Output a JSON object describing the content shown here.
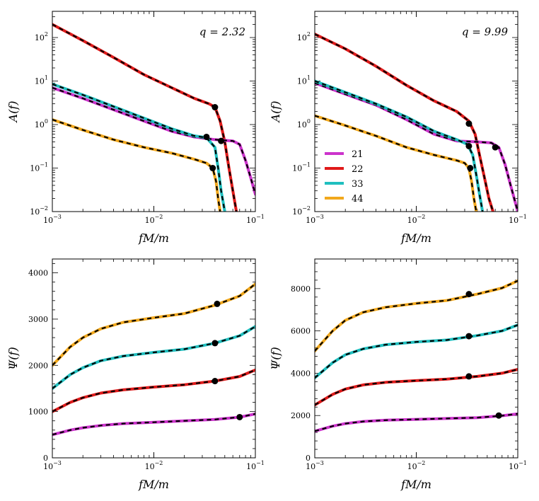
{
  "colors": {
    "21": "#cc33cc",
    "22": "#e01a1a",
    "33": "#1fbfbf",
    "44": "#f2a81c",
    "fit": "#000000",
    "marker": "#000000"
  },
  "chart_data": [
    {
      "type": "line",
      "id": "amp-q2",
      "annotation": "q = 2.32",
      "xlabel": "fM/m",
      "ylabel": "A(f)",
      "xscale": "log",
      "yscale": "log",
      "xlim": [
        0.001,
        0.1
      ],
      "ylim": [
        0.01,
        400
      ],
      "xticklabels": [
        "10^-3",
        "10^-2",
        "10^-1"
      ],
      "yticklabels": [
        "10^-2",
        "10^-1",
        "10^0",
        "10^1",
        "10^2"
      ],
      "legend": false,
      "series": [
        {
          "name": "22",
          "color": "#e01a1a",
          "x": [
            0.001,
            0.002,
            0.004,
            0.008,
            0.015,
            0.025,
            0.035,
            0.04,
            0.045,
            0.05,
            0.055,
            0.06,
            0.065
          ],
          "y": [
            200,
            85,
            35,
            14,
            7,
            4,
            3,
            2.5,
            1.2,
            0.4,
            0.1,
            0.03,
            0.01
          ]
        },
        {
          "name": "21",
          "color": "#cc33cc",
          "x": [
            0.001,
            0.002,
            0.004,
            0.008,
            0.015,
            0.025,
            0.04,
            0.06,
            0.07,
            0.08,
            0.09,
            0.1
          ],
          "y": [
            7,
            4,
            2.2,
            1.2,
            0.7,
            0.52,
            0.45,
            0.42,
            0.35,
            0.15,
            0.06,
            0.025
          ]
        },
        {
          "name": "33",
          "color": "#1fbfbf",
          "x": [
            0.001,
            0.002,
            0.004,
            0.008,
            0.015,
            0.025,
            0.033,
            0.04,
            0.043,
            0.046,
            0.05
          ],
          "y": [
            8.5,
            4.8,
            2.6,
            1.4,
            0.8,
            0.55,
            0.5,
            0.3,
            0.1,
            0.03,
            0.01
          ]
        },
        {
          "name": "44",
          "color": "#f2a81c",
          "x": [
            0.001,
            0.002,
            0.004,
            0.008,
            0.015,
            0.025,
            0.033,
            0.038,
            0.041,
            0.043,
            0.045
          ],
          "y": [
            1.3,
            0.75,
            0.45,
            0.3,
            0.22,
            0.16,
            0.13,
            0.1,
            0.05,
            0.02,
            0.01
          ]
        }
      ],
      "markers": [
        {
          "x": 0.04,
          "y": 2.5
        },
        {
          "x": 0.033,
          "y": 0.52
        },
        {
          "x": 0.046,
          "y": 0.42
        },
        {
          "x": 0.038,
          "y": 0.1
        }
      ]
    },
    {
      "type": "line",
      "id": "amp-q9",
      "annotation": "q = 9.99",
      "xlabel": "fM/m",
      "ylabel": "A(f)",
      "xscale": "log",
      "yscale": "log",
      "xlim": [
        0.001,
        0.1
      ],
      "ylim": [
        0.01,
        400
      ],
      "xticklabels": [
        "10^-3",
        "10^-2",
        "10^-1"
      ],
      "yticklabels": [
        "10^-2",
        "10^-1",
        "10^0",
        "10^1",
        "10^2"
      ],
      "legend": true,
      "legend_loc": "center-left",
      "series": [
        {
          "name": "22",
          "color": "#e01a1a",
          "x": [
            0.001,
            0.002,
            0.004,
            0.008,
            0.015,
            0.025,
            0.033,
            0.038,
            0.042,
            0.047,
            0.052,
            0.057
          ],
          "y": [
            120,
            55,
            22,
            8,
            3.5,
            2,
            1.2,
            0.6,
            0.2,
            0.06,
            0.02,
            0.01
          ]
        },
        {
          "name": "21",
          "color": "#cc33cc",
          "x": [
            0.001,
            0.002,
            0.004,
            0.008,
            0.015,
            0.025,
            0.04,
            0.055,
            0.065,
            0.075,
            0.085,
            0.1
          ],
          "y": [
            9,
            5,
            2.8,
            1.3,
            0.6,
            0.42,
            0.4,
            0.38,
            0.3,
            0.12,
            0.04,
            0.01
          ]
        },
        {
          "name": "33",
          "color": "#1fbfbf",
          "x": [
            0.001,
            0.002,
            0.004,
            0.008,
            0.015,
            0.025,
            0.032,
            0.036,
            0.039,
            0.042,
            0.045
          ],
          "y": [
            10,
            5.5,
            3,
            1.5,
            0.7,
            0.45,
            0.35,
            0.2,
            0.07,
            0.025,
            0.01
          ]
        },
        {
          "name": "44",
          "color": "#f2a81c",
          "x": [
            0.001,
            0.002,
            0.004,
            0.008,
            0.015,
            0.025,
            0.03,
            0.033,
            0.035,
            0.037,
            0.039
          ],
          "y": [
            1.6,
            0.95,
            0.55,
            0.3,
            0.2,
            0.15,
            0.13,
            0.1,
            0.05,
            0.02,
            0.01
          ]
        }
      ],
      "markers": [
        {
          "x": 0.033,
          "y": 1.05
        },
        {
          "x": 0.033,
          "y": 0.32
        },
        {
          "x": 0.06,
          "y": 0.3
        },
        {
          "x": 0.034,
          "y": 0.1
        }
      ]
    },
    {
      "type": "line",
      "id": "phase-q2",
      "xlabel": "fM/m",
      "ylabel": "Ψ(f)",
      "xscale": "log",
      "yscale": "linear",
      "xlim": [
        0.001,
        0.1
      ],
      "ylim": [
        0,
        4300
      ],
      "yticks": [
        0,
        1000,
        2000,
        3000,
        4000
      ],
      "xticklabels": [
        "10^-3",
        "10^-2",
        "10^-1"
      ],
      "yticklabels": [
        "0",
        "1000",
        "2000",
        "3000",
        "4000"
      ],
      "legend": false,
      "series": [
        {
          "name": "21",
          "color": "#cc33cc",
          "x": [
            0.001,
            0.0015,
            0.002,
            0.003,
            0.005,
            0.01,
            0.02,
            0.04,
            0.07,
            0.1
          ],
          "y": [
            500,
            600,
            650,
            700,
            740,
            770,
            800,
            830,
            880,
            950
          ]
        },
        {
          "name": "22",
          "color": "#e01a1a",
          "x": [
            0.001,
            0.0015,
            0.002,
            0.003,
            0.005,
            0.01,
            0.02,
            0.04,
            0.07,
            0.1
          ],
          "y": [
            1000,
            1200,
            1300,
            1400,
            1470,
            1530,
            1580,
            1660,
            1760,
            1900
          ]
        },
        {
          "name": "33",
          "color": "#1fbfbf",
          "x": [
            0.001,
            0.0015,
            0.002,
            0.003,
            0.005,
            0.01,
            0.02,
            0.04,
            0.07,
            0.1
          ],
          "y": [
            1500,
            1800,
            1950,
            2100,
            2200,
            2280,
            2350,
            2480,
            2640,
            2840
          ]
        },
        {
          "name": "44",
          "color": "#f2a81c",
          "x": [
            0.001,
            0.0015,
            0.002,
            0.003,
            0.005,
            0.01,
            0.02,
            0.04,
            0.07,
            0.1
          ],
          "y": [
            2000,
            2400,
            2600,
            2790,
            2930,
            3030,
            3120,
            3300,
            3500,
            3760
          ]
        }
      ],
      "markers": [
        {
          "x": 0.07,
          "y": 880
        },
        {
          "x": 0.04,
          "y": 1660
        },
        {
          "x": 0.04,
          "y": 2480
        },
        {
          "x": 0.042,
          "y": 3330
        }
      ]
    },
    {
      "type": "line",
      "id": "phase-q9",
      "xlabel": "fM/m",
      "ylabel": "Ψ(f)",
      "xscale": "log",
      "yscale": "linear",
      "xlim": [
        0.001,
        0.1
      ],
      "ylim": [
        0,
        9400
      ],
      "yticks": [
        0,
        2000,
        4000,
        6000,
        8000
      ],
      "xticklabels": [
        "10^-3",
        "10^-2",
        "10^-1"
      ],
      "yticklabels": [
        "0",
        "2000",
        "4000",
        "6000",
        "8000"
      ],
      "legend": false,
      "series": [
        {
          "name": "21",
          "color": "#cc33cc",
          "x": [
            0.001,
            0.0015,
            0.002,
            0.003,
            0.005,
            0.01,
            0.02,
            0.04,
            0.07,
            0.1
          ],
          "y": [
            1260,
            1500,
            1620,
            1720,
            1780,
            1820,
            1860,
            1900,
            1990,
            2080
          ]
        },
        {
          "name": "22",
          "color": "#e01a1a",
          "x": [
            0.001,
            0.0015,
            0.002,
            0.003,
            0.005,
            0.01,
            0.02,
            0.04,
            0.07,
            0.1
          ],
          "y": [
            2500,
            3000,
            3250,
            3450,
            3570,
            3650,
            3720,
            3850,
            4000,
            4180
          ]
        },
        {
          "name": "33",
          "color": "#1fbfbf",
          "x": [
            0.001,
            0.0015,
            0.002,
            0.003,
            0.005,
            0.01,
            0.02,
            0.04,
            0.07,
            0.1
          ],
          "y": [
            3780,
            4500,
            4870,
            5150,
            5350,
            5480,
            5570,
            5780,
            6000,
            6280
          ]
        },
        {
          "name": "44",
          "color": "#f2a81c",
          "x": [
            0.001,
            0.0015,
            0.002,
            0.003,
            0.005,
            0.01,
            0.02,
            0.04,
            0.07,
            0.1
          ],
          "y": [
            5050,
            6000,
            6500,
            6880,
            7120,
            7300,
            7440,
            7740,
            8030,
            8370
          ]
        }
      ],
      "markers": [
        {
          "x": 0.065,
          "y": 2000
        },
        {
          "x": 0.033,
          "y": 3850
        },
        {
          "x": 0.033,
          "y": 5750
        },
        {
          "x": 0.033,
          "y": 7740
        }
      ]
    }
  ]
}
